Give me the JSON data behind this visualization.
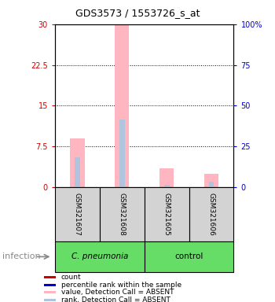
{
  "title": "GDS3573 / 1553726_s_at",
  "samples": [
    "GSM321607",
    "GSM321608",
    "GSM321605",
    "GSM321606"
  ],
  "bar_bg_color": "#d3d3d3",
  "ylim_left": [
    0,
    30
  ],
  "ylim_right": [
    0,
    100
  ],
  "yticks_left": [
    0,
    7.5,
    15,
    22.5,
    30
  ],
  "ytick_labels_left": [
    "0",
    "7.5",
    "15",
    "22.5",
    "30"
  ],
  "yticks_right": [
    0,
    25,
    50,
    75,
    100
  ],
  "ytick_labels_right": [
    "0",
    "25",
    "50",
    "75",
    "100%"
  ],
  "absent_value_bars": [
    9.0,
    30.0,
    3.5,
    2.5
  ],
  "absent_rank_bars": [
    5.5,
    12.5,
    0.5,
    1.0
  ],
  "absent_value_color": "#FFB6C1",
  "absent_rank_color": "#B0C4DE",
  "count_color": "#CC0000",
  "percentile_color": "#0000CC",
  "legend_items": [
    {
      "label": "count",
      "color": "#CC0000",
      "marker": "s"
    },
    {
      "label": "percentile rank within the sample",
      "color": "#0000CC",
      "marker": "s"
    },
    {
      "label": "value, Detection Call = ABSENT",
      "color": "#FFB6C1",
      "marker": "s"
    },
    {
      "label": "rank, Detection Call = ABSENT",
      "color": "#B0C4DE",
      "marker": "s"
    }
  ],
  "infection_label": "infection",
  "left_axis_color": "#CC0000",
  "right_axis_color": "#0000CC",
  "group1_label": "C. pneumonia",
  "group2_label": "control",
  "group_color": "#66DD66",
  "group1_range": [
    0,
    2
  ],
  "group2_range": [
    2,
    4
  ]
}
